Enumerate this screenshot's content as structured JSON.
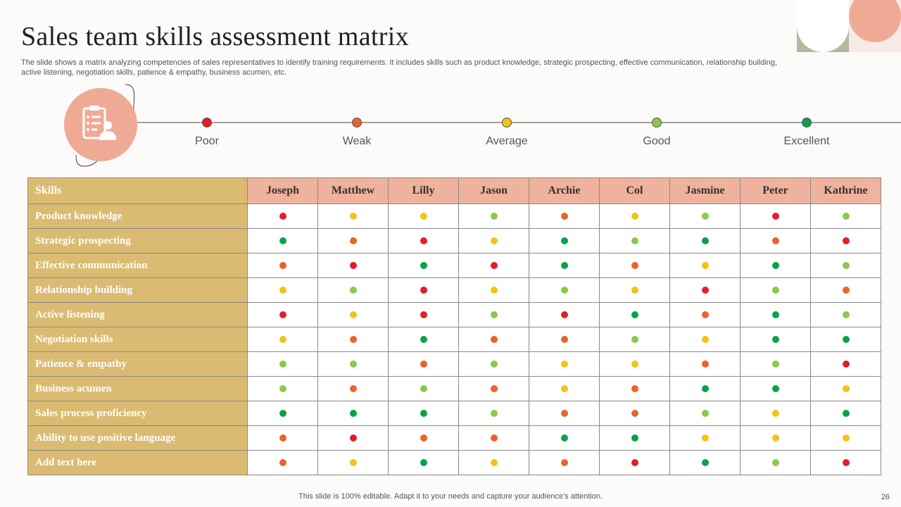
{
  "title": "Sales team skills assessment matrix",
  "subtitle": "The slide shows a matrix analyzing competencies of sales representatives to identify training requirements. It includes skills such as product knowledge, strategic prospecting, effective communication, relationship building, active listening, negotiation skills, patience & empathy, business acumen, etc.",
  "legend": {
    "icon": "clipboard-person-icon",
    "levels": [
      {
        "key": "poor",
        "label": "Poor",
        "color": "#e31e24"
      },
      {
        "key": "weak",
        "label": "Weak",
        "color": "#e8642c"
      },
      {
        "key": "average",
        "label": "Average",
        "color": "#f4c315"
      },
      {
        "key": "good",
        "label": "Good",
        "color": "#8cc84b"
      },
      {
        "key": "excellent",
        "label": "Excellent",
        "color": "#0aa14d"
      }
    ]
  },
  "table": {
    "skills_header": "Skills",
    "people": [
      "Joseph",
      "Matthew",
      "Lilly",
      "Jason",
      "Archie",
      "Col",
      "Jasmine",
      "Peter",
      "Kathrine"
    ],
    "rows": [
      {
        "skill": "Product knowledge",
        "ratings": [
          "poor",
          "average",
          "average",
          "good",
          "weak",
          "average",
          "good",
          "poor",
          "good"
        ]
      },
      {
        "skill": "Strategic prospecting",
        "ratings": [
          "excellent",
          "weak",
          "poor",
          "average",
          "excellent",
          "good",
          "excellent",
          "weak",
          "poor"
        ]
      },
      {
        "skill": "Effective communication",
        "ratings": [
          "weak",
          "poor",
          "excellent",
          "poor",
          "excellent",
          "weak",
          "average",
          "excellent",
          "good"
        ]
      },
      {
        "skill": "Relationship building",
        "ratings": [
          "average",
          "good",
          "poor",
          "average",
          "good",
          "average",
          "poor",
          "good",
          "weak"
        ]
      },
      {
        "skill": "Active listening",
        "ratings": [
          "poor",
          "average",
          "poor",
          "good",
          "poor",
          "excellent",
          "weak",
          "excellent",
          "good"
        ]
      },
      {
        "skill": "Negotiation skills",
        "ratings": [
          "average",
          "weak",
          "excellent",
          "weak",
          "weak",
          "good",
          "average",
          "excellent",
          "excellent"
        ]
      },
      {
        "skill": "Patience & empathy",
        "ratings": [
          "good",
          "good",
          "weak",
          "good",
          "average",
          "average",
          "weak",
          "good",
          "poor"
        ]
      },
      {
        "skill": "Business acumen",
        "ratings": [
          "good",
          "weak",
          "good",
          "weak",
          "average",
          "weak",
          "excellent",
          "excellent",
          "average"
        ]
      },
      {
        "skill": "Sales process proficiency",
        "ratings": [
          "excellent",
          "excellent",
          "excellent",
          "good",
          "weak",
          "weak",
          "good",
          "average",
          "excellent"
        ]
      },
      {
        "skill": "Ability to use positive language",
        "ratings": [
          "weak",
          "poor",
          "weak",
          "weak",
          "excellent",
          "excellent",
          "average",
          "average",
          "average"
        ]
      },
      {
        "skill": "Add text here",
        "ratings": [
          "weak",
          "average",
          "excellent",
          "average",
          "weak",
          "poor",
          "excellent",
          "good",
          "poor"
        ]
      }
    ]
  },
  "footer": "This slide is 100% editable. Adapt it to your needs and capture your audience's attention.",
  "page_number": "26"
}
